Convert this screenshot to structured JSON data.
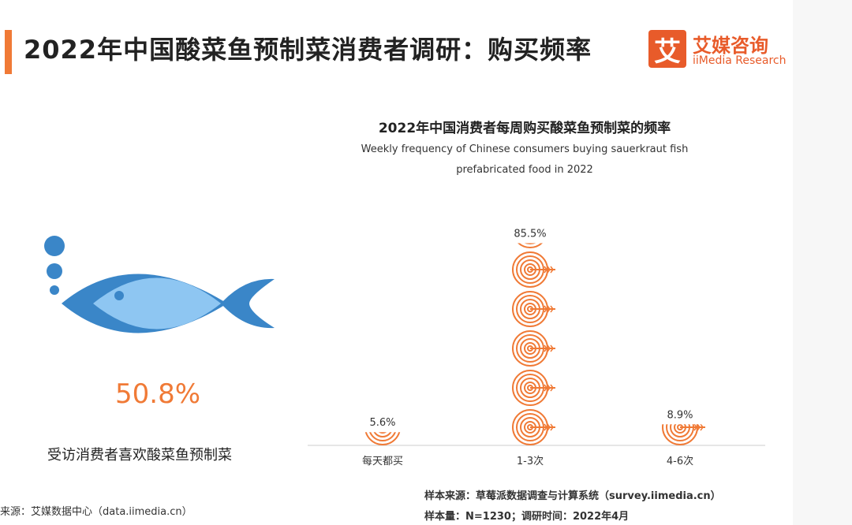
{
  "header": {
    "title": "2022年中国酸菜鱼预制菜消费者调研：购买频率",
    "logo_cn": "艾媒咨询",
    "logo_en": "iiMedia Research",
    "logo_mark": "艾",
    "accent_color": "#f07a36"
  },
  "left_panel": {
    "percent": "50.8%",
    "label": "受访消费者喜欢酸菜鱼预制菜",
    "icon": "fish-icon"
  },
  "chart_data": {
    "type": "bar",
    "title": "2022年中国消费者每周购买酸菜鱼预制菜的频率",
    "subtitle_line1": "Weekly frequency of Chinese consumers buying sauerkraut fish",
    "subtitle_line2": "prefabricated food in 2022",
    "categories": [
      "每天都买",
      "1-3次",
      "4-6次"
    ],
    "values": [
      5.6,
      85.5,
      8.9
    ],
    "data_labels": [
      "5.6%",
      "85.5%",
      "8.9%"
    ],
    "bar_color": "#f07a36",
    "ylim": [
      0,
      100
    ]
  },
  "footer": {
    "source_left": "来源：艾媒数据中心（data.iimedia.cn）",
    "source_right_1": "样本来源：草莓派数据调查与计算系统（survey.iimedia.cn）",
    "source_right_2": "样本量：N=1230；调研时间：2022年4月"
  }
}
